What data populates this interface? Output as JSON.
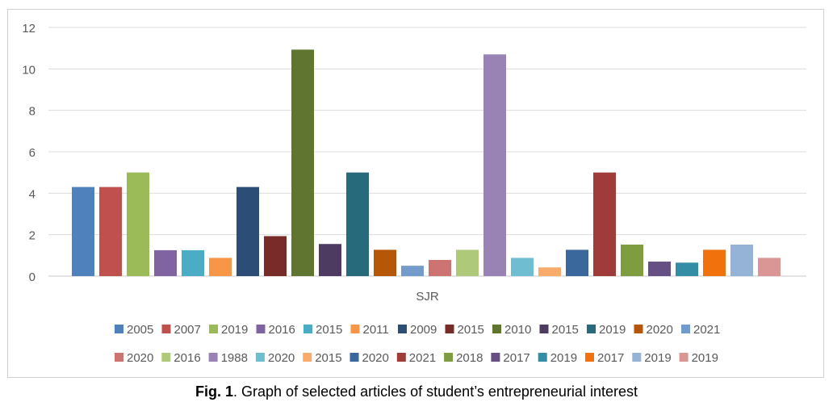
{
  "chart_data": {
    "type": "bar",
    "categories": [
      "SJR"
    ],
    "ylim": [
      0,
      12
    ],
    "yticks": [
      0,
      2,
      4,
      6,
      8,
      10,
      12
    ],
    "grid": true,
    "legend_position": "bottom",
    "series": [
      {
        "name": "2005",
        "values": [
          4.3
        ],
        "color": "#4F81BD"
      },
      {
        "name": "2007",
        "values": [
          4.3
        ],
        "color": "#C0504D"
      },
      {
        "name": "2019",
        "values": [
          5.0
        ],
        "color": "#9BBB59"
      },
      {
        "name": "2016",
        "values": [
          1.25
        ],
        "color": "#8064A2"
      },
      {
        "name": "2015",
        "values": [
          1.25
        ],
        "color": "#4BACC6"
      },
      {
        "name": "2011",
        "values": [
          0.88
        ],
        "color": "#F79646"
      },
      {
        "name": "2009",
        "values": [
          4.3
        ],
        "color": "#2C4D75"
      },
      {
        "name": "2015",
        "values": [
          1.93
        ],
        "color": "#772C2A"
      },
      {
        "name": "2010",
        "values": [
          10.93
        ],
        "color": "#5F7530"
      },
      {
        "name": "2015",
        "values": [
          1.55
        ],
        "color": "#4D3B62"
      },
      {
        "name": "2019",
        "values": [
          5.0
        ],
        "color": "#276A7C"
      },
      {
        "name": "2020",
        "values": [
          1.27
        ],
        "color": "#B65708"
      },
      {
        "name": "2021",
        "values": [
          0.5
        ],
        "color": "#729ACA"
      },
      {
        "name": "2020",
        "values": [
          0.78
        ],
        "color": "#CD7371"
      },
      {
        "name": "2016",
        "values": [
          1.27
        ],
        "color": "#AFC97A"
      },
      {
        "name": "1988",
        "values": [
          10.7
        ],
        "color": "#9983B5"
      },
      {
        "name": "2020",
        "values": [
          0.88
        ],
        "color": "#6FBDD1"
      },
      {
        "name": "2015",
        "values": [
          0.42
        ],
        "color": "#F9AB6B"
      },
      {
        "name": "2020",
        "values": [
          1.27
        ],
        "color": "#3A679C"
      },
      {
        "name": "2021",
        "values": [
          5.0
        ],
        "color": "#9F3B38"
      },
      {
        "name": "2018",
        "values": [
          1.52
        ],
        "color": "#7E9C40"
      },
      {
        "name": "2017",
        "values": [
          0.7
        ],
        "color": "#664F83"
      },
      {
        "name": "2019",
        "values": [
          0.65
        ],
        "color": "#338DA5"
      },
      {
        "name": "2017",
        "values": [
          1.27
        ],
        "color": "#F1710C"
      },
      {
        "name": "2019",
        "values": [
          1.52
        ],
        "color": "#95B3D7"
      },
      {
        "name": "2019",
        "values": [
          0.88
        ],
        "color": "#D99694"
      }
    ]
  },
  "caption": {
    "label": "Fig. 1",
    "text": ". Graph of selected articles of student’s entrepreneurial interest"
  }
}
